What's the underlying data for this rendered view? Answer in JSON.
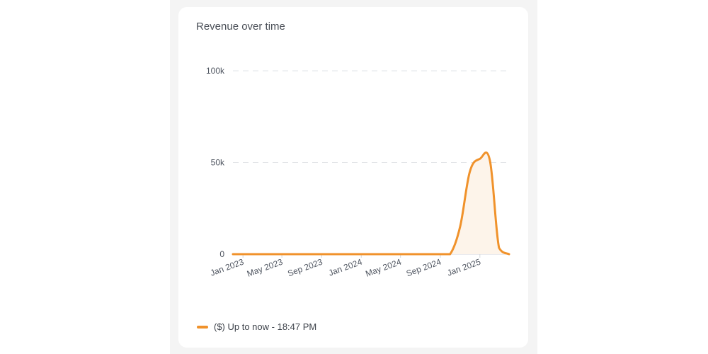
{
  "card": {
    "title": "Revenue over time"
  },
  "colors": {
    "series": "#f0922b",
    "fill": "#fdf4ea",
    "grid": "#e2e4e8",
    "axis": "#d4d7dc"
  },
  "chart_data": {
    "type": "area",
    "title": "Revenue over time",
    "xlabel": "",
    "ylabel": "",
    "ylim": [
      0,
      100000
    ],
    "y_ticks": [
      {
        "value": 0,
        "label": "0"
      },
      {
        "value": 50000,
        "label": "50k"
      },
      {
        "value": 100000,
        "label": "100k"
      }
    ],
    "x_ticks": [
      "Jan 2023",
      "May 2023",
      "Sep 2023",
      "Jan 2024",
      "May 2024",
      "Sep 2024",
      "Jan 2025"
    ],
    "grid": "horizontal-dashed",
    "legend_position": "bottom-left",
    "series": [
      {
        "name": "($) Up to now - 18:47 PM",
        "x": [
          "2022-12-01",
          "2023-01-01",
          "2023-02-01",
          "2023-03-01",
          "2023-04-01",
          "2023-05-01",
          "2023-06-01",
          "2023-07-01",
          "2023-08-01",
          "2023-09-01",
          "2023-10-01",
          "2023-11-01",
          "2023-12-01",
          "2024-01-01",
          "2024-02-01",
          "2024-03-01",
          "2024-04-01",
          "2024-05-01",
          "2024-06-01",
          "2024-07-01",
          "2024-08-01",
          "2024-09-01",
          "2024-10-01",
          "2024-11-01",
          "2024-12-01",
          "2025-01-01",
          "2025-02-01",
          "2025-03-01",
          "2025-04-01"
        ],
        "values": [
          0,
          0,
          0,
          0,
          0,
          0,
          0,
          0,
          0,
          0,
          0,
          0,
          0,
          0,
          0,
          0,
          0,
          0,
          0,
          0,
          0,
          0,
          0,
          15000,
          45000,
          52000,
          51000,
          3500,
          0
        ]
      }
    ]
  }
}
